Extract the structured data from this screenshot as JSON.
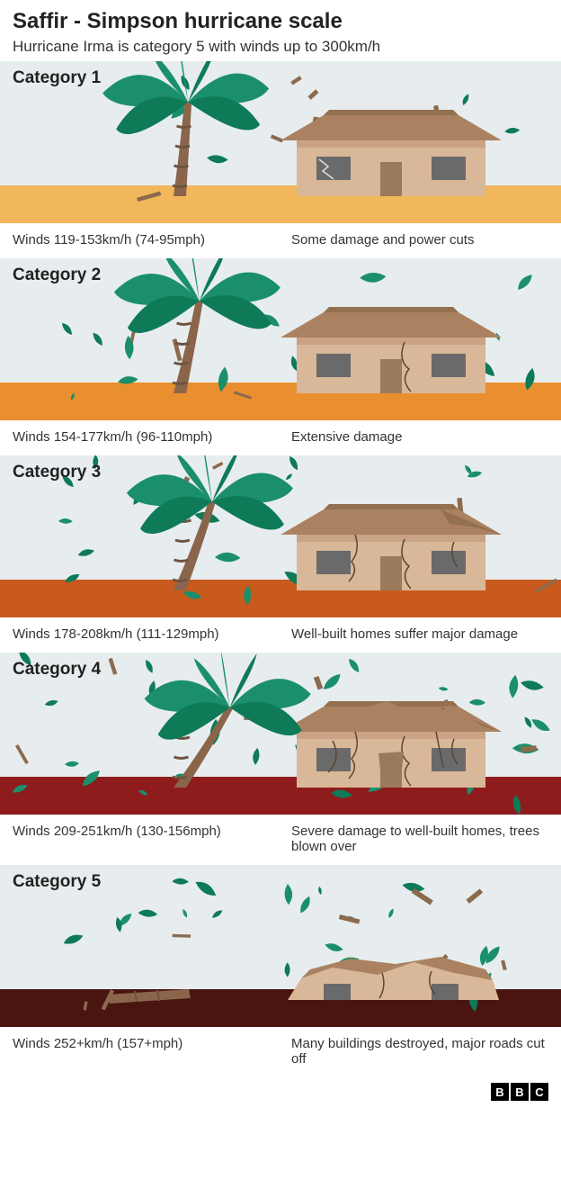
{
  "header": {
    "title": "Saffir - Simpson hurricane scale",
    "subtitle": "Hurricane Irma is category 5 with winds up to 300km/h"
  },
  "footer": {
    "attribution": [
      "B",
      "B",
      "C"
    ]
  },
  "colors": {
    "sky": "#e7edee",
    "palm_trunk": "#8a654c",
    "palm_trunk_dark": "#6f5340",
    "palm_leaf": "#1b8f6b",
    "palm_leaf_dark": "#0e7a58",
    "house_wall": "#d9b799",
    "house_wall_shadow": "#c9a383",
    "house_roof": "#ab8261",
    "house_roof_dark": "#93704f",
    "house_window": "#6a6a6a",
    "house_door": "#9b7a5c",
    "crack": "#5a4634",
    "debris_brown": "#8c6a4d"
  },
  "categories": [
    {
      "label": "Category 1",
      "winds": "Winds 119-153km/h (74-95mph)",
      "damage": "Some damage and power cuts",
      "ground_color": "#f1b75a",
      "tree_lean_deg": 5,
      "house_damage_level": 0,
      "debris_count": 12,
      "tree_present": true
    },
    {
      "label": "Category 2",
      "winds": "Winds 154-177km/h (96-110mph)",
      "damage": "Extensive damage",
      "ground_color": "#e98f2f",
      "tree_lean_deg": 12,
      "house_damage_level": 1,
      "debris_count": 20,
      "tree_present": true
    },
    {
      "label": "Category 3",
      "winds": "Winds 178-208km/h (111-129mph)",
      "damage": "Well-built homes suffer major damage",
      "ground_color": "#c85a1d",
      "tree_lean_deg": 20,
      "house_damage_level": 2,
      "debris_count": 28,
      "tree_present": true
    },
    {
      "label": "Category 4",
      "winds": "Winds 209-251km/h (130-156mph)",
      "damage": "Severe damage to well-built homes, trees blown over",
      "ground_color": "#8e1c1c",
      "tree_lean_deg": 32,
      "house_damage_level": 3,
      "debris_count": 36,
      "tree_present": true
    },
    {
      "label": "Category 5",
      "winds": "Winds 252+km/h (157+mph)",
      "damage": "Many buildings destroyed, major roads cut off",
      "ground_color": "#4a1410",
      "tree_lean_deg": 0,
      "house_damage_level": 4,
      "debris_count": 30,
      "tree_present": false
    }
  ]
}
